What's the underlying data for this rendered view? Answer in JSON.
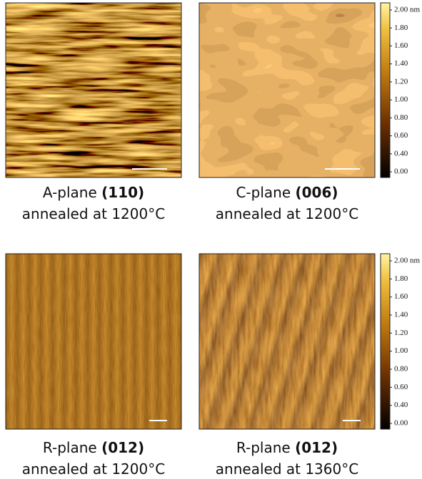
{
  "panels": [
    {
      "plane": "A-plane",
      "index": "(110)",
      "condition": "annealed at 1200°C"
    },
    {
      "plane": "C-plane",
      "index": "(006)",
      "condition": "annealed at 1200°C"
    },
    {
      "plane": "R-plane",
      "index": "(012)",
      "condition": "annealed at 1200°C"
    },
    {
      "plane": "R-plane",
      "index": "(012)",
      "condition": "annealed at 1360°C"
    }
  ],
  "colorbars": [
    {
      "ticks": [
        "2.00 nm",
        "1.80",
        "1.60",
        "1.40",
        "1.20",
        "1.00",
        "0.80",
        "0.60",
        "0.40",
        "0.00"
      ]
    },
    {
      "ticks": [
        "2.00 nm",
        "1.80",
        "1.60",
        "1.40",
        "1.20",
        "1.00",
        "0.80",
        "0.60",
        "0.40",
        "0.00"
      ]
    }
  ]
}
